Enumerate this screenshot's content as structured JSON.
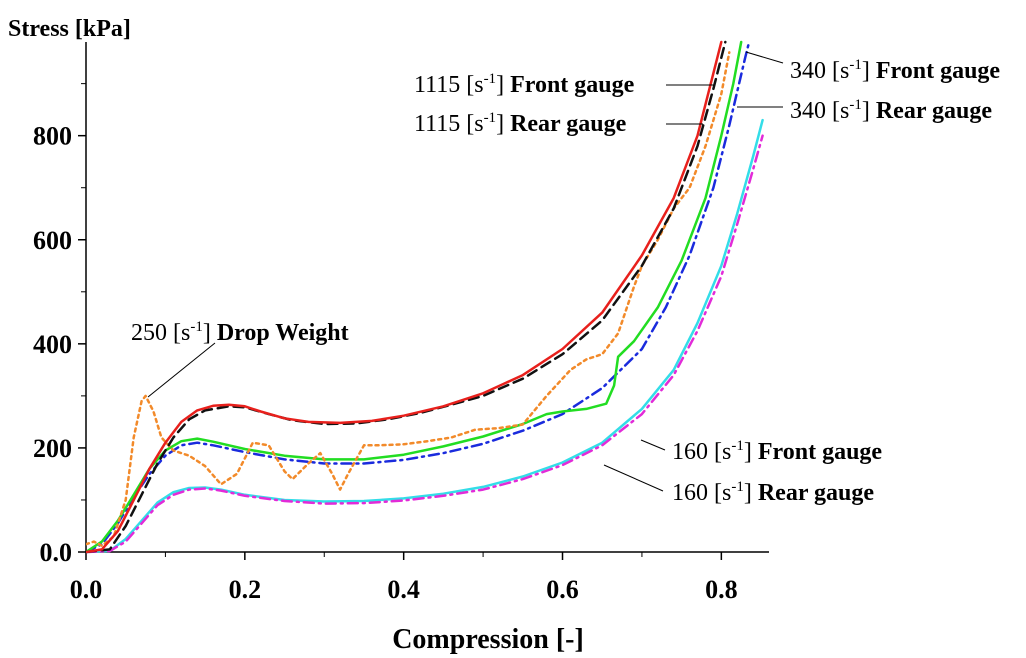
{
  "chart_data": {
    "type": "line",
    "title": "",
    "xlabel": "Compression [-]",
    "ylabel": "Stress [kPa]",
    "xlim": [
      0.0,
      0.86
    ],
    "ylim": [
      0,
      980
    ],
    "x_ticks": [
      0.0,
      0.2,
      0.4,
      0.6,
      0.8
    ],
    "x_tick_labels": [
      "0.0",
      "0.2",
      "0.4",
      "0.6",
      "0.8"
    ],
    "y_ticks": [
      0,
      200,
      400,
      600,
      800
    ],
    "y_tick_labels": [
      "0.0",
      "200",
      "400",
      "600",
      "800"
    ],
    "grid": false,
    "legend": "none",
    "series": [
      {
        "name": "1115 [s-1] Front gauge",
        "label_parts": {
          "value": "1115",
          "unit_base": "[s",
          "unit_exp": "-1",
          "unit_close": "]",
          "gauge": "Front gauge"
        },
        "color": "#e8201c",
        "dash": "solid",
        "points": [
          [
            0.0,
            0
          ],
          [
            0.02,
            5
          ],
          [
            0.04,
            40
          ],
          [
            0.06,
            100
          ],
          [
            0.08,
            160
          ],
          [
            0.1,
            210
          ],
          [
            0.12,
            250
          ],
          [
            0.14,
            272
          ],
          [
            0.16,
            281
          ],
          [
            0.18,
            283
          ],
          [
            0.2,
            280
          ],
          [
            0.22,
            270
          ],
          [
            0.25,
            257
          ],
          [
            0.28,
            250
          ],
          [
            0.32,
            248
          ],
          [
            0.36,
            252
          ],
          [
            0.4,
            262
          ],
          [
            0.45,
            280
          ],
          [
            0.5,
            305
          ],
          [
            0.55,
            340
          ],
          [
            0.6,
            390
          ],
          [
            0.65,
            460
          ],
          [
            0.7,
            570
          ],
          [
            0.74,
            680
          ],
          [
            0.77,
            800
          ],
          [
            0.79,
            920
          ],
          [
            0.8,
            980
          ]
        ]
      },
      {
        "name": "1115 [s-1] Rear gauge",
        "label_parts": {
          "value": "1115",
          "unit_base": "[s",
          "unit_exp": "-1",
          "unit_close": "]",
          "gauge": "Rear gauge"
        },
        "color": "#111111",
        "dash": "dashed",
        "points": [
          [
            0.0,
            0
          ],
          [
            0.03,
            5
          ],
          [
            0.05,
            50
          ],
          [
            0.07,
            110
          ],
          [
            0.09,
            170
          ],
          [
            0.11,
            220
          ],
          [
            0.13,
            255
          ],
          [
            0.15,
            272
          ],
          [
            0.18,
            280
          ],
          [
            0.2,
            278
          ],
          [
            0.23,
            265
          ],
          [
            0.26,
            253
          ],
          [
            0.3,
            246
          ],
          [
            0.34,
            247
          ],
          [
            0.38,
            255
          ],
          [
            0.42,
            267
          ],
          [
            0.46,
            283
          ],
          [
            0.5,
            300
          ],
          [
            0.55,
            333
          ],
          [
            0.6,
            380
          ],
          [
            0.65,
            445
          ],
          [
            0.7,
            550
          ],
          [
            0.74,
            660
          ],
          [
            0.77,
            780
          ],
          [
            0.79,
            890
          ],
          [
            0.805,
            980
          ]
        ]
      },
      {
        "name": "340 [s-1] Front gauge",
        "label_parts": {
          "value": "340",
          "unit_base": "[s",
          "unit_exp": "-1",
          "unit_close": "]",
          "gauge": "Front gauge"
        },
        "color": "#22dd22",
        "dash": "solid",
        "points": [
          [
            0.0,
            0
          ],
          [
            0.02,
            20
          ],
          [
            0.04,
            60
          ],
          [
            0.06,
            110
          ],
          [
            0.08,
            160
          ],
          [
            0.1,
            195
          ],
          [
            0.12,
            213
          ],
          [
            0.14,
            218
          ],
          [
            0.16,
            212
          ],
          [
            0.2,
            198
          ],
          [
            0.25,
            185
          ],
          [
            0.3,
            178
          ],
          [
            0.35,
            178
          ],
          [
            0.4,
            187
          ],
          [
            0.45,
            203
          ],
          [
            0.5,
            222
          ],
          [
            0.55,
            246
          ],
          [
            0.58,
            265
          ],
          [
            0.6,
            270
          ],
          [
            0.63,
            275
          ],
          [
            0.655,
            285
          ],
          [
            0.665,
            320
          ],
          [
            0.67,
            375
          ],
          [
            0.69,
            405
          ],
          [
            0.72,
            470
          ],
          [
            0.75,
            560
          ],
          [
            0.78,
            680
          ],
          [
            0.8,
            800
          ],
          [
            0.815,
            900
          ],
          [
            0.825,
            980
          ]
        ]
      },
      {
        "name": "340 [s-1] Rear gauge",
        "label_parts": {
          "value": "340",
          "unit_base": "[s",
          "unit_exp": "-1",
          "unit_close": "]",
          "gauge": "Rear gauge"
        },
        "color": "#1a2bdd",
        "dash": "dashdot",
        "points": [
          [
            0.0,
            0
          ],
          [
            0.02,
            15
          ],
          [
            0.04,
            55
          ],
          [
            0.06,
            105
          ],
          [
            0.08,
            150
          ],
          [
            0.1,
            185
          ],
          [
            0.12,
            205
          ],
          [
            0.14,
            210
          ],
          [
            0.16,
            205
          ],
          [
            0.2,
            192
          ],
          [
            0.25,
            178
          ],
          [
            0.3,
            170
          ],
          [
            0.35,
            170
          ],
          [
            0.4,
            177
          ],
          [
            0.45,
            190
          ],
          [
            0.5,
            208
          ],
          [
            0.55,
            233
          ],
          [
            0.6,
            265
          ],
          [
            0.65,
            315
          ],
          [
            0.7,
            390
          ],
          [
            0.73,
            470
          ],
          [
            0.76,
            570
          ],
          [
            0.79,
            700
          ],
          [
            0.81,
            820
          ],
          [
            0.83,
            950
          ],
          [
            0.835,
            980
          ]
        ]
      },
      {
        "name": "160 [s-1] Front gauge",
        "label_parts": {
          "value": "160",
          "unit_base": "[s",
          "unit_exp": "-1",
          "unit_close": "]",
          "gauge": "Front gauge"
        },
        "color": "#33dde8",
        "dash": "solid",
        "points": [
          [
            0.0,
            0
          ],
          [
            0.03,
            2
          ],
          [
            0.05,
            25
          ],
          [
            0.07,
            60
          ],
          [
            0.09,
            95
          ],
          [
            0.11,
            115
          ],
          [
            0.13,
            123
          ],
          [
            0.15,
            124
          ],
          [
            0.17,
            120
          ],
          [
            0.2,
            110
          ],
          [
            0.25,
            100
          ],
          [
            0.3,
            97
          ],
          [
            0.35,
            98
          ],
          [
            0.4,
            103
          ],
          [
            0.45,
            112
          ],
          [
            0.5,
            125
          ],
          [
            0.55,
            145
          ],
          [
            0.6,
            172
          ],
          [
            0.65,
            210
          ],
          [
            0.7,
            275
          ],
          [
            0.74,
            350
          ],
          [
            0.77,
            440
          ],
          [
            0.8,
            550
          ],
          [
            0.82,
            650
          ],
          [
            0.84,
            760
          ],
          [
            0.852,
            830
          ]
        ]
      },
      {
        "name": "160 [s-1] Rear gauge",
        "label_parts": {
          "value": "160",
          "unit_base": "[s",
          "unit_exp": "-1",
          "unit_close": "]",
          "gauge": "Rear gauge"
        },
        "color": "#e22bd8",
        "dash": "dashdot",
        "points": [
          [
            0.0,
            0
          ],
          [
            0.03,
            2
          ],
          [
            0.05,
            20
          ],
          [
            0.07,
            55
          ],
          [
            0.09,
            90
          ],
          [
            0.11,
            110
          ],
          [
            0.13,
            120
          ],
          [
            0.15,
            122
          ],
          [
            0.17,
            118
          ],
          [
            0.2,
            108
          ],
          [
            0.25,
            98
          ],
          [
            0.3,
            93
          ],
          [
            0.35,
            94
          ],
          [
            0.4,
            99
          ],
          [
            0.45,
            108
          ],
          [
            0.5,
            120
          ],
          [
            0.55,
            140
          ],
          [
            0.6,
            167
          ],
          [
            0.65,
            205
          ],
          [
            0.7,
            265
          ],
          [
            0.74,
            340
          ],
          [
            0.77,
            425
          ],
          [
            0.8,
            530
          ],
          [
            0.82,
            630
          ],
          [
            0.84,
            735
          ],
          [
            0.852,
            800
          ]
        ]
      },
      {
        "name": "250 [s-1] Drop Weight",
        "label_parts": {
          "value": "250",
          "unit_base": "[s",
          "unit_exp": "-1",
          "unit_close": "]",
          "gauge": "Drop Weight"
        },
        "color": "#f28a2a",
        "dash": "dotted",
        "points": [
          [
            0.0,
            15
          ],
          [
            0.01,
            20
          ],
          [
            0.02,
            12
          ],
          [
            0.035,
            30
          ],
          [
            0.05,
            100
          ],
          [
            0.06,
            220
          ],
          [
            0.07,
            290
          ],
          [
            0.075,
            300
          ],
          [
            0.085,
            270
          ],
          [
            0.095,
            220
          ],
          [
            0.11,
            195
          ],
          [
            0.13,
            185
          ],
          [
            0.15,
            165
          ],
          [
            0.17,
            130
          ],
          [
            0.19,
            150
          ],
          [
            0.21,
            210
          ],
          [
            0.23,
            205
          ],
          [
            0.25,
            155
          ],
          [
            0.26,
            140
          ],
          [
            0.28,
            170
          ],
          [
            0.295,
            190
          ],
          [
            0.31,
            150
          ],
          [
            0.32,
            120
          ],
          [
            0.33,
            150
          ],
          [
            0.35,
            205
          ],
          [
            0.37,
            205
          ],
          [
            0.4,
            207
          ],
          [
            0.43,
            213
          ],
          [
            0.46,
            220
          ],
          [
            0.49,
            235
          ],
          [
            0.52,
            238
          ],
          [
            0.55,
            245
          ],
          [
            0.58,
            300
          ],
          [
            0.61,
            350
          ],
          [
            0.63,
            370
          ],
          [
            0.65,
            380
          ],
          [
            0.67,
            420
          ],
          [
            0.69,
            510
          ],
          [
            0.7,
            550
          ],
          [
            0.72,
            600
          ],
          [
            0.74,
            660
          ],
          [
            0.76,
            700
          ],
          [
            0.78,
            780
          ],
          [
            0.8,
            880
          ],
          [
            0.81,
            960
          ]
        ]
      }
    ],
    "annotations": [
      {
        "series": 0,
        "value": "1115",
        "unit_base": "[s",
        "unit_exp": "-1",
        "unit_close": "]",
        "gauge": "Front gauge"
      },
      {
        "series": 1,
        "value": "1115",
        "unit_base": "[s",
        "unit_exp": "-1",
        "unit_close": "]",
        "gauge": "Rear gauge"
      },
      {
        "series": 2,
        "value": "340",
        "unit_base": "[s",
        "unit_exp": "-1",
        "unit_close": "]",
        "gauge": "Front gauge"
      },
      {
        "series": 3,
        "value": "340",
        "unit_base": "[s",
        "unit_exp": "-1",
        "unit_close": "]",
        "gauge": "Rear gauge"
      },
      {
        "series": 6,
        "value": "250",
        "unit_base": "[s",
        "unit_exp": "-1",
        "unit_close": "]",
        "gauge": "Drop Weight"
      },
      {
        "series": 4,
        "value": "160",
        "unit_base": "[s",
        "unit_exp": "-1",
        "unit_close": "]",
        "gauge": "Front gauge"
      },
      {
        "series": 5,
        "value": "160",
        "unit_base": "[s",
        "unit_exp": "-1",
        "unit_close": "]",
        "gauge": "Rear gauge"
      }
    ]
  }
}
